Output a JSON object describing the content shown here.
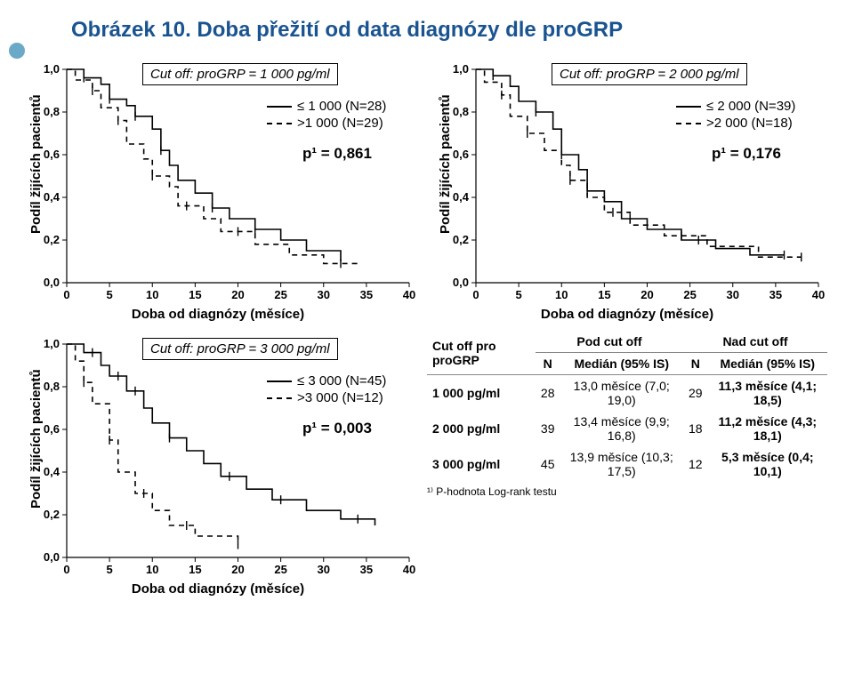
{
  "title": "Obrázek 10. Doba přežití od data diagnózy dle proGRP",
  "common": {
    "y_label": "Podíl žijících pacientů",
    "x_label": "Doba od diagnózy (měsíce)",
    "y_ticks": [
      "0,0",
      "0,2",
      "0,4",
      "0,6",
      "0,8",
      "1,0"
    ],
    "x_ticks": [
      "0",
      "5",
      "10",
      "15",
      "20",
      "25",
      "30",
      "35",
      "40"
    ],
    "ylim": [
      0,
      1
    ],
    "xlim": [
      0,
      40
    ],
    "colors": {
      "line": "#000000",
      "bg": "#ffffff",
      "title": "#1a5490"
    }
  },
  "charts": [
    {
      "cutoff": "Cut off: proGRP = 1 000 pg/ml",
      "legend1": "≤ 1 000 (N=28)",
      "legend2": ">1 000 (N=29)",
      "pval": "p¹ = 0,861",
      "series_solid": [
        [
          0,
          1.0
        ],
        [
          2,
          0.96
        ],
        [
          4,
          0.93
        ],
        [
          5,
          0.86
        ],
        [
          7,
          0.83
        ],
        [
          8,
          0.78
        ],
        [
          10,
          0.72
        ],
        [
          11,
          0.62
        ],
        [
          12,
          0.55
        ],
        [
          13,
          0.48
        ],
        [
          15,
          0.42
        ],
        [
          17,
          0.35
        ],
        [
          19,
          0.3
        ],
        [
          22,
          0.25
        ],
        [
          25,
          0.2
        ],
        [
          28,
          0.15
        ],
        [
          32,
          0.1
        ]
      ],
      "series_dash": [
        [
          0,
          1.0
        ],
        [
          1,
          0.95
        ],
        [
          3,
          0.9
        ],
        [
          4,
          0.82
        ],
        [
          6,
          0.76
        ],
        [
          7,
          0.65
        ],
        [
          9,
          0.58
        ],
        [
          10,
          0.5
        ],
        [
          12,
          0.45
        ],
        [
          13,
          0.36
        ],
        [
          16,
          0.3
        ],
        [
          18,
          0.24
        ],
        [
          22,
          0.18
        ],
        [
          26,
          0.13
        ],
        [
          30,
          0.09
        ],
        [
          34,
          0.09
        ]
      ],
      "censor_solid": [
        [
          2,
          0.96
        ],
        [
          5,
          0.86
        ],
        [
          8,
          0.78
        ],
        [
          11,
          0.62
        ],
        [
          17,
          0.35
        ],
        [
          22,
          0.25
        ]
      ],
      "censor_dash": [
        [
          3,
          0.9
        ],
        [
          6,
          0.76
        ],
        [
          10,
          0.5
        ],
        [
          14,
          0.36
        ],
        [
          20,
          0.24
        ],
        [
          32,
          0.09
        ]
      ]
    },
    {
      "cutoff": "Cut off: proGRP = 2 000 pg/ml",
      "legend1": "≤ 2 000 (N=39)",
      "legend2": ">2 000 (N=18)",
      "pval": "p¹ = 0,176",
      "series_solid": [
        [
          0,
          1.0
        ],
        [
          2,
          0.97
        ],
        [
          4,
          0.92
        ],
        [
          5,
          0.85
        ],
        [
          7,
          0.8
        ],
        [
          9,
          0.72
        ],
        [
          10,
          0.6
        ],
        [
          12,
          0.53
        ],
        [
          13,
          0.43
        ],
        [
          15,
          0.38
        ],
        [
          17,
          0.3
        ],
        [
          20,
          0.25
        ],
        [
          24,
          0.2
        ],
        [
          28,
          0.16
        ],
        [
          32,
          0.13
        ],
        [
          36,
          0.13
        ]
      ],
      "series_dash": [
        [
          0,
          1.0
        ],
        [
          1,
          0.94
        ],
        [
          3,
          0.88
        ],
        [
          4,
          0.78
        ],
        [
          6,
          0.7
        ],
        [
          8,
          0.62
        ],
        [
          10,
          0.55
        ],
        [
          11,
          0.48
        ],
        [
          13,
          0.4
        ],
        [
          15,
          0.33
        ],
        [
          18,
          0.27
        ],
        [
          22,
          0.22
        ],
        [
          27,
          0.17
        ],
        [
          33,
          0.12
        ],
        [
          38,
          0.12
        ]
      ],
      "censor_solid": [
        [
          2,
          0.97
        ],
        [
          7,
          0.8
        ],
        [
          10,
          0.6
        ],
        [
          13,
          0.43
        ],
        [
          18,
          0.3
        ],
        [
          26,
          0.2
        ],
        [
          36,
          0.13
        ]
      ],
      "censor_dash": [
        [
          3,
          0.88
        ],
        [
          6,
          0.7
        ],
        [
          11,
          0.48
        ],
        [
          16,
          0.33
        ],
        [
          24,
          0.22
        ],
        [
          38,
          0.12
        ]
      ]
    },
    {
      "cutoff": "Cut off: proGRP = 3 000 pg/ml",
      "legend1": "≤ 3 000 (N=45)",
      "legend2": ">3 000 (N=12)",
      "pval": "p¹ = 0,003",
      "series_solid": [
        [
          0,
          1.0
        ],
        [
          2,
          0.96
        ],
        [
          4,
          0.9
        ],
        [
          5,
          0.85
        ],
        [
          7,
          0.78
        ],
        [
          9,
          0.7
        ],
        [
          10,
          0.63
        ],
        [
          12,
          0.56
        ],
        [
          14,
          0.5
        ],
        [
          16,
          0.44
        ],
        [
          18,
          0.38
        ],
        [
          21,
          0.32
        ],
        [
          24,
          0.27
        ],
        [
          28,
          0.22
        ],
        [
          32,
          0.18
        ],
        [
          36,
          0.15
        ]
      ],
      "series_dash": [
        [
          0,
          1.0
        ],
        [
          1,
          0.92
        ],
        [
          2,
          0.82
        ],
        [
          3,
          0.72
        ],
        [
          5,
          0.55
        ],
        [
          6,
          0.4
        ],
        [
          8,
          0.3
        ],
        [
          10,
          0.22
        ],
        [
          12,
          0.15
        ],
        [
          15,
          0.1
        ],
        [
          20,
          0.06
        ]
      ],
      "censor_solid": [
        [
          3,
          0.96
        ],
        [
          6,
          0.85
        ],
        [
          8,
          0.78
        ],
        [
          12,
          0.56
        ],
        [
          19,
          0.38
        ],
        [
          25,
          0.27
        ],
        [
          34,
          0.18
        ]
      ],
      "censor_dash": [
        [
          2,
          0.82
        ],
        [
          5,
          0.55
        ],
        [
          9,
          0.3
        ],
        [
          14,
          0.15
        ],
        [
          20,
          0.06
        ]
      ]
    }
  ],
  "table": {
    "head": {
      "cutoff_col": "Cut off pro proGRP",
      "group1": "Pod cut off",
      "group2": "Nad cut off",
      "n_label": "N",
      "median_label": "Medián (95% IS)"
    },
    "rows": [
      {
        "cut": "1 000 pg/ml",
        "n1": "28",
        "m1": "13,0 měsíce (7,0; 19,0)",
        "n2": "29",
        "m2": "11,3 měsíce (4,1; 18,5)"
      },
      {
        "cut": "2 000 pg/ml",
        "n1": "39",
        "m1": "13,4 měsíce (9,9; 16,8)",
        "n2": "18",
        "m2": "11,2 měsíce (4,3; 18,1)"
      },
      {
        "cut": "3 000 pg/ml",
        "n1": "45",
        "m1": "13,9 měsíce (10,3; 17,5)",
        "n2": "12",
        "m2": "5,3 měsíce (0,4; 10,1)"
      }
    ],
    "footnote": "¹⁾ P-hodnota Log-rank testu"
  }
}
